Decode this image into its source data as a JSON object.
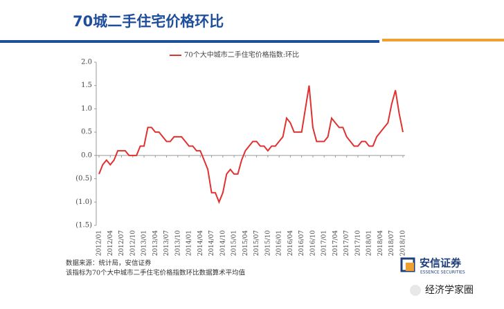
{
  "chart_data": {
    "type": "line",
    "title": "70城二手住宅价格环比",
    "categories": [
      "2012/01",
      null,
      null,
      "2012/04",
      null,
      null,
      "2012/07",
      null,
      null,
      "2012/10",
      null,
      null,
      "2013/01",
      null,
      null,
      "2013/04",
      null,
      null,
      "2013/07",
      null,
      null,
      "2013/10",
      null,
      null,
      "2014/01",
      null,
      null,
      "2014/04",
      null,
      null,
      "2014/07",
      null,
      null,
      "2014/10",
      null,
      null,
      "2015/01",
      null,
      null,
      "2015/04",
      null,
      null,
      "2015/07",
      null,
      null,
      "2015/10",
      null,
      null,
      "2016/01",
      null,
      null,
      "2016/04",
      null,
      null,
      "2016/07",
      null,
      null,
      "2016/10",
      null,
      null,
      "2017/01",
      null,
      null,
      "2017/04",
      null,
      null,
      "2017/07",
      null,
      null,
      "2017/10",
      null,
      null,
      "2018/01",
      null,
      null,
      "2018/04",
      null,
      null,
      "2018/07",
      null,
      null,
      "2018/10"
    ],
    "series": [
      {
        "name": "70个大中城市二手住宅价格指数:环比",
        "color": "#e03030",
        "values": [
          -0.4,
          -0.2,
          -0.1,
          -0.2,
          -0.1,
          0.1,
          0.1,
          0.1,
          0.0,
          0.0,
          0.0,
          0.2,
          0.2,
          0.6,
          0.6,
          0.5,
          0.5,
          0.4,
          0.3,
          0.3,
          0.4,
          0.4,
          0.4,
          0.3,
          0.2,
          0.2,
          0.1,
          0.1,
          -0.1,
          -0.3,
          -0.8,
          -0.8,
          -1.0,
          -0.8,
          -0.4,
          -0.3,
          -0.4,
          -0.4,
          -0.1,
          0.1,
          0.2,
          0.3,
          0.3,
          0.2,
          0.2,
          0.1,
          0.2,
          0.2,
          0.3,
          0.4,
          0.8,
          0.7,
          0.5,
          0.5,
          0.5,
          1.0,
          1.5,
          0.6,
          0.3,
          0.3,
          0.3,
          0.4,
          0.8,
          0.7,
          0.6,
          0.6,
          0.4,
          0.3,
          0.2,
          0.2,
          0.3,
          0.3,
          0.2,
          0.2,
          0.4,
          0.5,
          0.6,
          0.7,
          1.1,
          1.4,
          0.9,
          0.5
        ]
      }
    ],
    "ylim": [
      -1.5,
      2
    ],
    "yticks": [
      {
        "value": 2,
        "label": "2.0"
      },
      1.5,
      {
        "value": 1,
        "label": "1.0"
      },
      0.5,
      {
        "value": 0,
        "label": "0.0"
      },
      {
        "value": -0.5,
        "label": "(0.5)"
      },
      {
        "value": -1,
        "label": "(1.0)"
      },
      {
        "value": -1.5,
        "label": "(1.5)"
      }
    ],
    "legend": "top",
    "grid": false
  },
  "notes": [
    "数据来源：统计局，安信证券",
    "该指标为70个大中城市二手住宅价格指数环比数据算术平均值"
  ],
  "logo": {
    "name": "安信证券",
    "subtitle": "ESSENCE SECURITIES"
  },
  "watermark": "经济学家圈"
}
